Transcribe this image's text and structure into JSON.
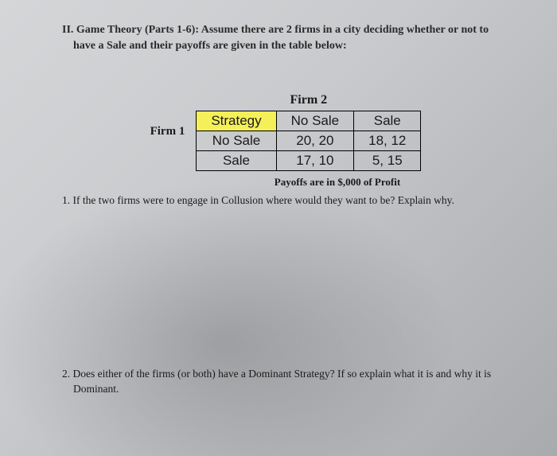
{
  "heading": {
    "lead": "II. Game Theory (Parts 1-6): Assume there are 2 firms in a city deciding whether or not to",
    "cont": "have a Sale and their payoffs are given in the table below:"
  },
  "players": {
    "row": "Firm 1",
    "col": "Firm 2"
  },
  "matrix": {
    "corner": "Strategy",
    "col_headers": [
      "No Sale",
      "Sale"
    ],
    "row_headers": [
      "No Sale",
      "Sale"
    ],
    "cells": [
      [
        "20, 20",
        "18, 12"
      ],
      [
        "17, 10",
        "5, 15"
      ]
    ],
    "highlight_color": "#f5ef5a",
    "border_color": "#000000",
    "cell_fontsize": 17
  },
  "caption": "Payoffs are in $,000 of Profit",
  "q1": "1. If the two firms were to engage in Collusion where would they want to be? Explain why.",
  "q2": "2. Does either of the firms (or both) have a Dominant Strategy? If so explain what it is and why it is Dominant."
}
